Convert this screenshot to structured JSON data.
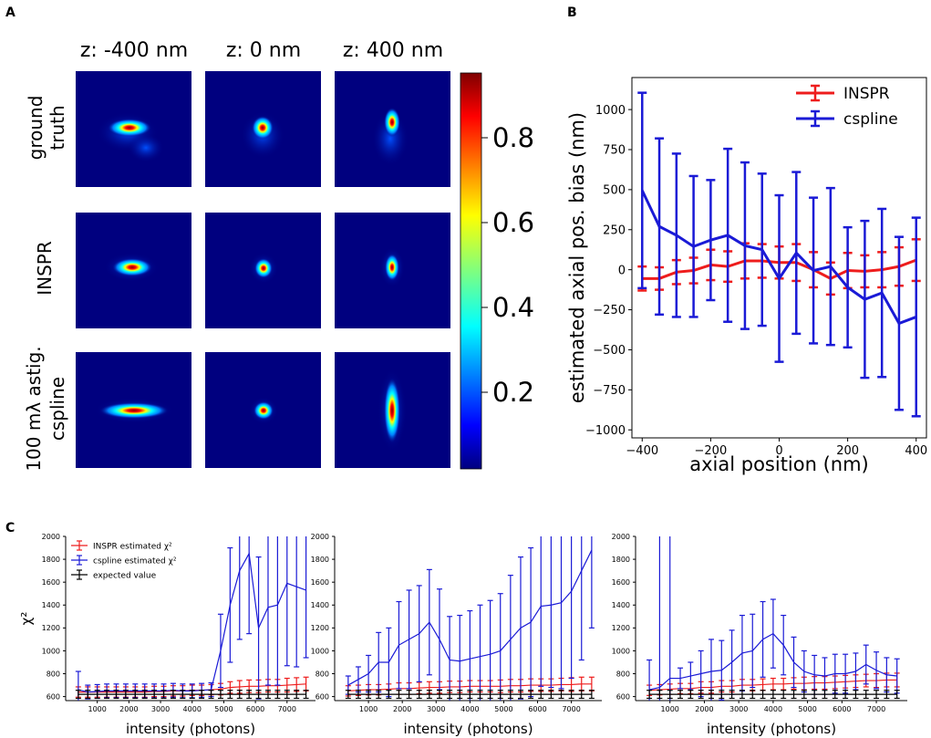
{
  "panels": {
    "a": "A",
    "b": "B",
    "c": "C"
  },
  "panel_a": {
    "column_titles": [
      "z: -400 nm",
      "z: 0 nm",
      "z: 400 nm"
    ],
    "row_titles": [
      [
        "ground",
        "truth"
      ],
      [
        "INSPR"
      ],
      [
        "100 mλ astig.",
        "cspline"
      ]
    ],
    "colorbar_ticks": [
      "0.2",
      "0.4",
      "0.6",
      "0.8"
    ],
    "colormap": [
      "#00007f",
      "#0000ff",
      "#007fff",
      "#00ffff",
      "#7fff7f",
      "#ffff00",
      "#ff7f00",
      "#ff0000",
      "#7f0000"
    ]
  },
  "chart_data": [
    {
      "type": "line",
      "panel": "B",
      "xlabel": "axial position (nm)",
      "ylabel": "estimated axial pos. bias (nm)",
      "xlim": [
        -430,
        430
      ],
      "ylim": [
        -1050,
        1200
      ],
      "xticks": [
        -400,
        -200,
        0,
        200,
        400
      ],
      "yticks": [
        -1000,
        -750,
        -500,
        -250,
        0,
        250,
        500,
        750,
        1000
      ],
      "legend_position": "top-right",
      "series": [
        {
          "name": "INSPR",
          "color": "#ee1c1c",
          "x": [
            -400,
            -350,
            -300,
            -250,
            -200,
            -150,
            -100,
            -50,
            0,
            50,
            100,
            150,
            200,
            250,
            300,
            350,
            400
          ],
          "y": [
            -55,
            -55,
            -15,
            -5,
            30,
            20,
            55,
            55,
            45,
            45,
            0,
            -55,
            -5,
            -10,
            0,
            20,
            60
          ],
          "err": [
            75,
            70,
            75,
            80,
            95,
            95,
            110,
            105,
            100,
            115,
            110,
            100,
            110,
            100,
            110,
            120,
            130
          ]
        },
        {
          "name": "cspline",
          "color": "#1a1ad6",
          "x": [
            -400,
            -350,
            -300,
            -250,
            -200,
            -150,
            -100,
            -50,
            0,
            50,
            100,
            150,
            200,
            250,
            300,
            350,
            400
          ],
          "y": [
            495,
            270,
            215,
            145,
            185,
            215,
            150,
            125,
            -55,
            105,
            -5,
            20,
            -110,
            -185,
            -145,
            -335,
            -295
          ],
          "err": [
            610,
            550,
            510,
            440,
            375,
            540,
            520,
            475,
            520,
            505,
            455,
            490,
            375,
            490,
            525,
            540,
            620
          ]
        }
      ]
    },
    {
      "type": "line",
      "panel": "C1",
      "xlabel": "intensity (photons)",
      "ylabel": "χ²",
      "xlim": [
        0,
        7900
      ],
      "ylim": [
        565,
        2000
      ],
      "xticks": [
        1000,
        2000,
        3000,
        4000,
        5000,
        6000,
        7000
      ],
      "yticks": [
        600,
        800,
        1000,
        1200,
        1400,
        1600,
        1800,
        2000
      ],
      "legend": [
        "INSPR estimated χ²",
        "cspline estimated χ²",
        "expected value"
      ],
      "legend_position": "top-left",
      "x": [
        400,
        700,
        1000,
        1300,
        1600,
        1900,
        2200,
        2500,
        2800,
        3100,
        3400,
        3700,
        4000,
        4300,
        4600,
        4900,
        5200,
        5500,
        5800,
        6100,
        6400,
        6700,
        7000,
        7300,
        7600
      ],
      "series": [
        {
          "name": "INSPR estimated χ²",
          "color": "#ee1c1c",
          "values": [
            640,
            640,
            640,
            640,
            640,
            640,
            640,
            640,
            645,
            645,
            650,
            650,
            655,
            655,
            660,
            665,
            680,
            685,
            690,
            690,
            695,
            695,
            700,
            705,
            710
          ],
          "err": [
            45,
            45,
            45,
            45,
            45,
            45,
            45,
            45,
            45,
            45,
            45,
            45,
            45,
            45,
            45,
            50,
            50,
            55,
            55,
            55,
            55,
            55,
            60,
            60,
            60
          ]
        },
        {
          "name": "cspline estimated χ²",
          "color": "#1a1ad6",
          "values": [
            660,
            640,
            645,
            650,
            650,
            650,
            650,
            650,
            650,
            650,
            655,
            650,
            650,
            655,
            660,
            1000,
            1400,
            1700,
            1850,
            1200,
            1380,
            1400,
            1590,
            1560,
            1530
          ],
          "err": [
            160,
            60,
            60,
            60,
            60,
            60,
            60,
            60,
            60,
            60,
            60,
            60,
            60,
            60,
            60,
            320,
            500,
            600,
            700,
            620,
            680,
            700,
            720,
            700,
            590
          ]
        },
        {
          "name": "expected value",
          "color": "#000000",
          "values": [
            620,
            620,
            620,
            620,
            620,
            620,
            620,
            620,
            620,
            620,
            620,
            620,
            620,
            620,
            620,
            620,
            620,
            620,
            620,
            620,
            620,
            620,
            620,
            620,
            620
          ],
          "err": [
            35,
            35,
            35,
            35,
            35,
            35,
            35,
            35,
            35,
            35,
            35,
            35,
            35,
            35,
            35,
            35,
            35,
            35,
            35,
            35,
            35,
            35,
            35,
            35,
            35
          ]
        }
      ]
    },
    {
      "type": "line",
      "panel": "C2",
      "xlabel": "intensity (photons)",
      "ylabel": "",
      "xlim": [
        0,
        7900
      ],
      "ylim": [
        565,
        2000
      ],
      "xticks": [
        1000,
        2000,
        3000,
        4000,
        5000,
        6000,
        7000
      ],
      "yticks": [
        600,
        800,
        1000,
        1200,
        1400,
        1600,
        1800,
        2000
      ],
      "x": [
        400,
        700,
        1000,
        1300,
        1600,
        1900,
        2200,
        2500,
        2800,
        3100,
        3400,
        3700,
        4000,
        4300,
        4600,
        4900,
        5200,
        5500,
        5800,
        6100,
        6400,
        6700,
        7000,
        7300,
        7600
      ],
      "series": [
        {
          "name": "INSPR estimated χ²",
          "color": "#ee1c1c",
          "values": [
            650,
            655,
            660,
            660,
            665,
            670,
            670,
            675,
            680,
            680,
            685,
            685,
            690,
            690,
            690,
            690,
            695,
            695,
            700,
            700,
            700,
            705,
            705,
            710,
            710
          ],
          "err": [
            45,
            45,
            45,
            45,
            45,
            50,
            50,
            50,
            50,
            50,
            50,
            50,
            50,
            50,
            50,
            55,
            55,
            55,
            55,
            55,
            55,
            55,
            60,
            60,
            60
          ]
        },
        {
          "name": "cspline estimated χ²",
          "color": "#1a1ad6",
          "values": [
            700,
            750,
            800,
            900,
            900,
            1050,
            1100,
            1150,
            1250,
            1100,
            920,
            910,
            930,
            950,
            970,
            1000,
            1100,
            1200,
            1250,
            1390,
            1400,
            1420,
            1520,
            1700,
            1880
          ],
          "err": [
            80,
            110,
            160,
            260,
            300,
            380,
            430,
            420,
            460,
            440,
            380,
            400,
            420,
            450,
            470,
            500,
            560,
            620,
            650,
            700,
            720,
            750,
            760,
            780,
            680
          ]
        },
        {
          "name": "expected value",
          "color": "#000000",
          "values": [
            620,
            620,
            620,
            620,
            620,
            620,
            620,
            620,
            620,
            620,
            620,
            620,
            620,
            620,
            620,
            620,
            620,
            620,
            620,
            620,
            620,
            620,
            620,
            620,
            620
          ],
          "err": [
            35,
            35,
            35,
            35,
            35,
            35,
            35,
            35,
            35,
            35,
            35,
            35,
            35,
            35,
            35,
            35,
            35,
            35,
            35,
            35,
            35,
            35,
            35,
            35,
            35
          ]
        }
      ]
    },
    {
      "type": "line",
      "panel": "C3",
      "xlabel": "intensity (photons)",
      "ylabel": "",
      "xlim": [
        0,
        7900
      ],
      "ylim": [
        565,
        2000
      ],
      "xticks": [
        1000,
        2000,
        3000,
        4000,
        5000,
        6000,
        7000
      ],
      "yticks": [
        600,
        800,
        1000,
        1200,
        1400,
        1600,
        1800,
        2000
      ],
      "x": [
        400,
        700,
        1000,
        1300,
        1600,
        1900,
        2200,
        2500,
        2800,
        3100,
        3400,
        3700,
        4000,
        4300,
        4600,
        4900,
        5200,
        5500,
        5800,
        6100,
        6400,
        6700,
        7000,
        7300,
        7600
      ],
      "series": [
        {
          "name": "INSPR estimated χ²",
          "color": "#ee1c1c",
          "values": [
            655,
            660,
            665,
            670,
            670,
            680,
            680,
            690,
            690,
            700,
            700,
            705,
            710,
            710,
            715,
            715,
            720,
            720,
            725,
            730,
            735,
            740,
            740,
            745,
            745
          ],
          "err": [
            45,
            45,
            45,
            45,
            45,
            50,
            50,
            50,
            50,
            50,
            50,
            50,
            50,
            50,
            50,
            55,
            55,
            55,
            55,
            55,
            55,
            55,
            60,
            60,
            60
          ]
        },
        {
          "name": "cspline estimated χ²",
          "color": "#1a1ad6",
          "values": [
            660,
            680,
            760,
            760,
            780,
            800,
            820,
            830,
            900,
            980,
            1000,
            1100,
            1150,
            1050,
            900,
            820,
            790,
            780,
            800,
            800,
            820,
            880,
            830,
            790,
            780
          ],
          "err": [
            260,
            1600,
            1500,
            90,
            120,
            200,
            280,
            260,
            280,
            330,
            320,
            330,
            300,
            260,
            220,
            180,
            170,
            160,
            170,
            170,
            160,
            170,
            160,
            150,
            150
          ]
        },
        {
          "name": "expected value",
          "color": "#000000",
          "values": [
            620,
            620,
            620,
            620,
            620,
            620,
            620,
            620,
            620,
            620,
            620,
            620,
            620,
            620,
            620,
            620,
            620,
            620,
            620,
            620,
            620,
            620,
            620,
            620,
            620
          ],
          "err": [
            35,
            35,
            35,
            35,
            35,
            35,
            35,
            35,
            35,
            35,
            35,
            35,
            35,
            35,
            35,
            35,
            35,
            35,
            35,
            35,
            35,
            35,
            35,
            35,
            35
          ]
        }
      ]
    }
  ]
}
